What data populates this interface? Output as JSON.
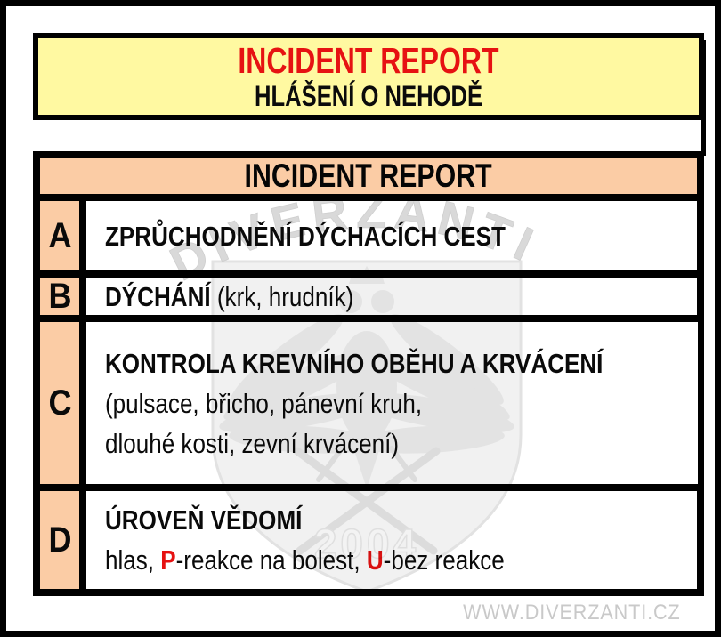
{
  "banner": {
    "title": "INCIDENT REPORT",
    "subtitle": "HLÁŠENÍ O NEHODĚ"
  },
  "table": {
    "header": "INCIDENT REPORT",
    "rows": [
      {
        "letter": "A",
        "lines": [
          [
            {
              "t": "ZPRŮCHODNĚNÍ DÝCHACÍCH CEST",
              "s": "bold"
            }
          ]
        ]
      },
      {
        "letter": "B",
        "lines": [
          [
            {
              "t": "DÝCHÁNÍ",
              "s": "bold"
            },
            {
              "t": " (krk, hrudník)",
              "s": "normal"
            }
          ]
        ]
      },
      {
        "letter": "C",
        "lines": [
          [
            {
              "t": "KONTROLA KREVNÍHO OBĚHU A KRVÁCENÍ",
              "s": "bold"
            }
          ],
          [
            {
              "t": "(pulsace, břicho, pánevní kruh,",
              "s": "normal"
            }
          ],
          [
            {
              "t": "dlouhé kosti, zevní krvácení)",
              "s": "normal"
            }
          ]
        ]
      },
      {
        "letter": "D",
        "lines": [
          [
            {
              "t": "ÚROVEŇ VĚDOMÍ",
              "s": "bold"
            }
          ],
          [
            {
              "t": "hlas, ",
              "s": "normal"
            },
            {
              "t": "P",
              "s": "redbold"
            },
            {
              "t": "-reakce na bolest, ",
              "s": "normal"
            },
            {
              "t": "U",
              "s": "redbold"
            },
            {
              "t": "-bez reakce",
              "s": "normal"
            }
          ]
        ]
      }
    ]
  },
  "watermark": {
    "arc_text": "DIVERZANTI",
    "year": "2004"
  },
  "footer": {
    "website": "WWW.DIVERZANTI.CZ"
  },
  "colors": {
    "banner_bg": "#fff9a1",
    "peach": "#fbcca5",
    "red": "#e61212",
    "border_black": "#000000",
    "watermark_gray": "#d9d9d9",
    "footer_gray": "#c9c9c9"
  }
}
